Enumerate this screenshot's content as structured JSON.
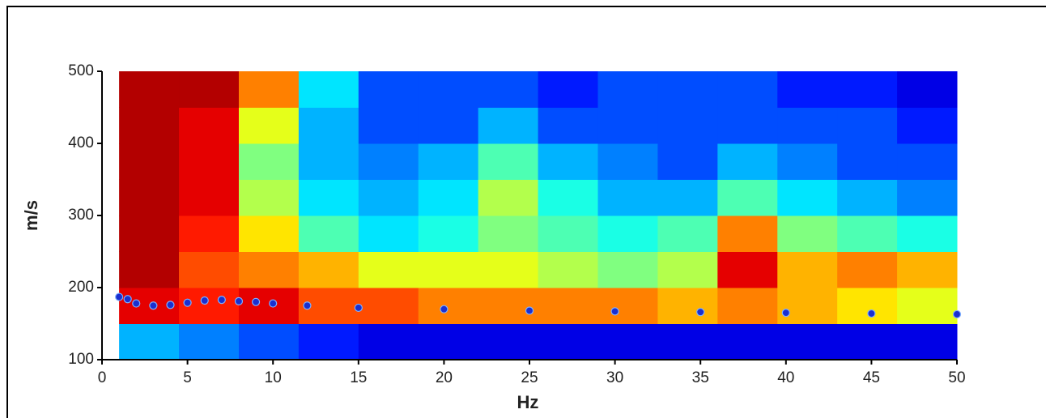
{
  "chart_data": {
    "type": "heatmap",
    "x_label": "Hz",
    "y_label": "m/s",
    "xlim": [
      0,
      50
    ],
    "ylim": [
      100,
      500
    ],
    "xticks": [
      0,
      5,
      10,
      15,
      20,
      25,
      30,
      35,
      40,
      45,
      50
    ],
    "yticks": [
      100,
      200,
      300,
      400,
      500
    ],
    "colormap": "jet",
    "x_bins": [
      1,
      4.5,
      8,
      11.5,
      15,
      18.5,
      22,
      25.5,
      29,
      32.5,
      36,
      39.5,
      43,
      46.5,
      50
    ],
    "y_bins": [
      100,
      150,
      200,
      250,
      300,
      350,
      400,
      450,
      500
    ],
    "z": [
      [
        0.3,
        0.25,
        0.2,
        0.15,
        0.1,
        0.1,
        0.1,
        0.1,
        0.1,
        0.1,
        0.1,
        0.1,
        0.1,
        0.1
      ],
      [
        0.9,
        0.85,
        0.9,
        0.8,
        0.8,
        0.75,
        0.75,
        0.75,
        0.75,
        0.7,
        0.75,
        0.7,
        0.65,
        0.6
      ],
      [
        0.95,
        0.8,
        0.75,
        0.7,
        0.6,
        0.6,
        0.6,
        0.55,
        0.5,
        0.55,
        0.9,
        0.7,
        0.75,
        0.7
      ],
      [
        0.95,
        0.85,
        0.65,
        0.45,
        0.35,
        0.4,
        0.5,
        0.45,
        0.4,
        0.45,
        0.75,
        0.5,
        0.45,
        0.4
      ],
      [
        0.95,
        0.9,
        0.55,
        0.35,
        0.3,
        0.35,
        0.55,
        0.4,
        0.3,
        0.3,
        0.45,
        0.35,
        0.3,
        0.25
      ],
      [
        0.95,
        0.9,
        0.5,
        0.3,
        0.25,
        0.3,
        0.45,
        0.3,
        0.25,
        0.2,
        0.3,
        0.25,
        0.2,
        0.2
      ],
      [
        0.95,
        0.9,
        0.6,
        0.3,
        0.2,
        0.2,
        0.3,
        0.2,
        0.2,
        0.2,
        0.2,
        0.2,
        0.2,
        0.15
      ],
      [
        0.95,
        0.95,
        0.75,
        0.35,
        0.2,
        0.2,
        0.2,
        0.15,
        0.2,
        0.2,
        0.2,
        0.15,
        0.15,
        0.1
      ]
    ],
    "curve": {
      "color": "#1a2fd0",
      "x": [
        1,
        1.5,
        2,
        3,
        4,
        5,
        6,
        7,
        8,
        9,
        10,
        12,
        15,
        20,
        25,
        30,
        35,
        40,
        45,
        50
      ],
      "values": [
        187,
        184,
        178,
        175,
        176,
        179,
        182,
        183,
        181,
        180,
        178,
        175,
        172,
        170,
        168,
        167,
        166,
        165,
        164,
        163
      ]
    }
  }
}
